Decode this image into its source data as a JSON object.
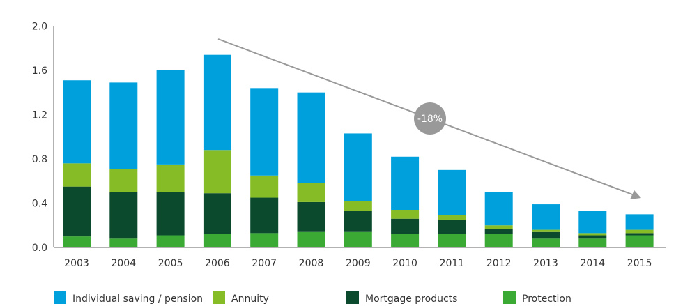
{
  "chart_data": {
    "type": "bar",
    "stacked": true,
    "title": "",
    "xlabel": "",
    "ylabel": "",
    "ylim": [
      0,
      2.0
    ],
    "yticks": [
      "0.0",
      "0.4",
      "0.8",
      "1.2",
      "1.6",
      "2.0"
    ],
    "grid": false,
    "legend_position": "bottom",
    "categories": [
      "2003",
      "2004",
      "2005",
      "2006",
      "2007",
      "2008",
      "2009",
      "2010",
      "2011",
      "2012",
      "2013",
      "2014",
      "2015"
    ],
    "series": [
      {
        "name": "Protection",
        "color": "#3aaa35",
        "values": [
          0.1,
          0.08,
          0.11,
          0.12,
          0.13,
          0.14,
          0.14,
          0.12,
          0.12,
          0.12,
          0.08,
          0.08,
          0.11
        ]
      },
      {
        "name": "Mortgage products",
        "color": "#0b4a2c",
        "values": [
          0.45,
          0.42,
          0.39,
          0.37,
          0.32,
          0.27,
          0.19,
          0.14,
          0.13,
          0.05,
          0.06,
          0.03,
          0.02
        ]
      },
      {
        "name": "Annuity",
        "color": "#86bc25",
        "values": [
          0.21,
          0.21,
          0.25,
          0.39,
          0.2,
          0.17,
          0.09,
          0.08,
          0.04,
          0.03,
          0.02,
          0.02,
          0.03
        ]
      },
      {
        "name": "Individual saving / pension",
        "color": "#00a0dd",
        "values": [
          0.75,
          0.78,
          0.85,
          0.86,
          0.79,
          0.82,
          0.61,
          0.48,
          0.41,
          0.3,
          0.23,
          0.2,
          0.14
        ]
      }
    ],
    "legend_order": [
      "Individual saving / pension",
      "Annuity",
      "Mortgage products",
      "Protection"
    ],
    "annotation": {
      "text": "-18%",
      "from_category": "2006",
      "to_category": "2015"
    }
  }
}
